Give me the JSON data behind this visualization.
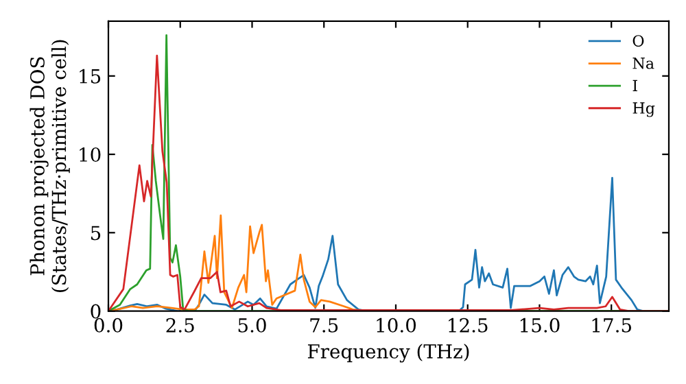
{
  "chart_data": {
    "type": "line",
    "xlabel": "Frequency (THz)",
    "ylabel": "Phonon projected DOS\n(States/THz·primitive cell)",
    "xlim": [
      0,
      19.5
    ],
    "ylim": [
      0,
      18.5
    ],
    "xticks": [
      {
        "value": 0,
        "label": "0.0"
      },
      {
        "value": 2.5,
        "label": "2.5"
      },
      {
        "value": 5,
        "label": "5.0"
      },
      {
        "value": 7.5,
        "label": "7.5"
      },
      {
        "value": 10,
        "label": "10.0"
      },
      {
        "value": 12.5,
        "label": "12.5"
      },
      {
        "value": 15,
        "label": "15.0"
      },
      {
        "value": 17.5,
        "label": "17.5"
      }
    ],
    "yticks": [
      0,
      5,
      10,
      15
    ],
    "grid": false,
    "legend": "top right",
    "marker": "none",
    "line_style": "solid",
    "series": [
      {
        "name": "O",
        "color": "#1f77b4",
        "x": [
          0,
          0.3,
          0.76,
          1.0,
          1.35,
          1.7,
          2.0,
          2.4,
          3.0,
          3.15,
          3.34,
          3.62,
          4.1,
          4.4,
          4.85,
          5.05,
          5.28,
          5.5,
          5.85,
          6.33,
          6.56,
          6.8,
          7.0,
          7.2,
          7.32,
          7.45,
          7.65,
          7.8,
          7.99,
          8.3,
          8.7,
          9.0,
          12.2,
          12.34,
          12.41,
          12.65,
          12.77,
          12.9,
          13.0,
          13.1,
          13.24,
          13.38,
          13.72,
          13.88,
          14.0,
          14.12,
          14.68,
          15.0,
          15.17,
          15.33,
          15.5,
          15.6,
          15.8,
          16.0,
          16.2,
          16.35,
          16.6,
          16.76,
          16.87,
          17.0,
          17.1,
          17.32,
          17.53,
          17.66,
          17.85,
          18.2,
          18.4,
          18.6,
          19.5
        ],
        "values": [
          0,
          0.1,
          0.35,
          0.45,
          0.3,
          0.4,
          0.15,
          0,
          0,
          0.4,
          1.05,
          0.5,
          0.4,
          0.1,
          0.6,
          0.4,
          0.8,
          0.3,
          0.15,
          1.7,
          2.0,
          2.3,
          1.5,
          0.2,
          1.6,
          2.2,
          3.3,
          4.8,
          1.7,
          0.7,
          0.1,
          0,
          0,
          0.25,
          1.7,
          2.0,
          3.9,
          1.5,
          2.8,
          1.9,
          2.4,
          1.7,
          1.5,
          2.7,
          0.2,
          1.6,
          1.6,
          1.9,
          2.2,
          1.1,
          2.6,
          1.0,
          2.3,
          2.8,
          2.2,
          2.0,
          1.9,
          2.2,
          1.7,
          2.9,
          0.5,
          2.2,
          8.5,
          2.0,
          1.5,
          0.7,
          0.1,
          0,
          0
        ]
      },
      {
        "name": "Na",
        "color": "#ff7f0e",
        "x": [
          0,
          0.3,
          0.8,
          1.2,
          1.7,
          2.2,
          2.6,
          3.0,
          3.15,
          3.34,
          3.48,
          3.7,
          3.78,
          3.91,
          4.03,
          4.3,
          4.52,
          4.72,
          4.8,
          4.93,
          5.05,
          5.25,
          5.34,
          5.48,
          5.55,
          5.7,
          5.85,
          6.49,
          6.68,
          6.8,
          7.0,
          7.2,
          7.4,
          7.7,
          8.2,
          8.5,
          9.0,
          19.5
        ],
        "values": [
          0,
          0.1,
          0.3,
          0.2,
          0.3,
          0.2,
          0.1,
          0.1,
          0.3,
          3.8,
          1.8,
          4.8,
          2.1,
          6.1,
          1.2,
          0.2,
          1.5,
          2.3,
          1.2,
          5.4,
          3.7,
          5.0,
          5.5,
          1.9,
          2.6,
          0.4,
          0.8,
          1.3,
          3.6,
          2.0,
          0.6,
          0.25,
          0.7,
          0.6,
          0.3,
          0.1,
          0,
          0
        ]
      },
      {
        "name": "I",
        "color": "#2ca02c",
        "x": [
          0,
          0.4,
          0.76,
          1.0,
          1.32,
          1.45,
          1.53,
          1.65,
          1.8,
          1.91,
          2.02,
          2.15,
          2.23,
          2.35,
          2.5,
          2.6,
          2.8,
          19.5
        ],
        "values": [
          0,
          0.4,
          1.4,
          1.7,
          2.6,
          2.7,
          10.6,
          8.3,
          6.1,
          4.6,
          17.6,
          3.4,
          3.1,
          4.2,
          2.2,
          0.1,
          0,
          0
        ]
      },
      {
        "name": "Hg",
        "color": "#d62728",
        "x": [
          0,
          0.52,
          1.08,
          1.24,
          1.35,
          1.48,
          1.69,
          1.88,
          2.03,
          2.15,
          2.25,
          2.4,
          2.5,
          2.65,
          2.99,
          3.23,
          3.55,
          3.78,
          3.9,
          4.1,
          4.25,
          4.55,
          4.85,
          5.25,
          5.5,
          6.0,
          14.0,
          15.0,
          15.5,
          16.0,
          17.0,
          17.3,
          17.53,
          17.8,
          18.1,
          19.5
        ],
        "values": [
          0,
          1.4,
          9.3,
          7.0,
          8.3,
          7.3,
          16.3,
          10.2,
          8.2,
          2.3,
          2.2,
          2.3,
          0.26,
          0.1,
          1.25,
          2.1,
          2.1,
          2.5,
          1.2,
          1.3,
          0.3,
          0.6,
          0.3,
          0.5,
          0.2,
          0.05,
          0.05,
          0.2,
          0.1,
          0.2,
          0.2,
          0.3,
          0.9,
          0.1,
          0,
          0
        ]
      }
    ]
  }
}
